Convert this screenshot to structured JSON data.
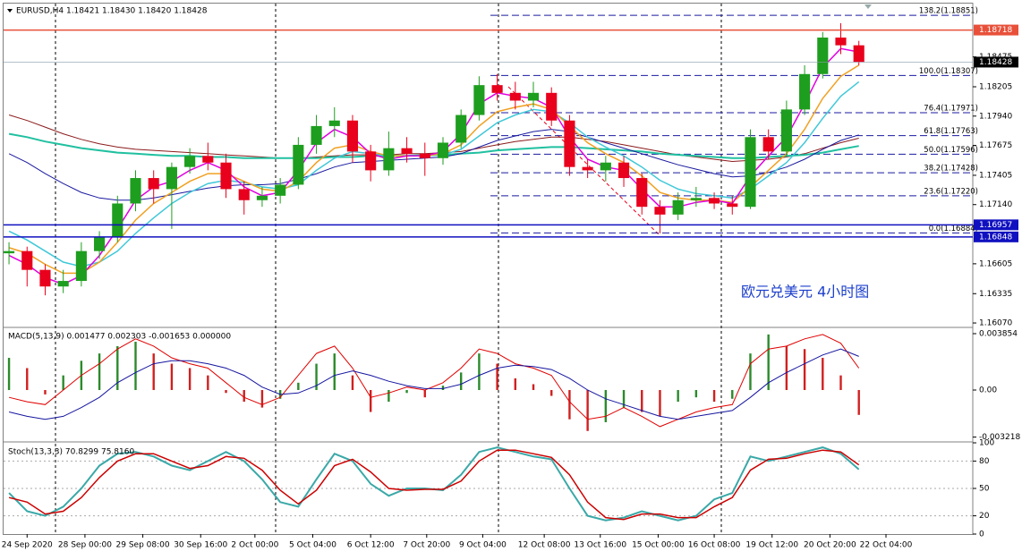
{
  "chart_data": [
    {
      "type": "candlestick",
      "title": "EURUSD,H4  1.18421 1.18430 1.18420 1.18428",
      "open": [
        1.167,
        1.1672,
        1.1655,
        1.164,
        1.1645,
        1.1672,
        1.1685,
        1.1715,
        1.1738,
        1.1728,
        1.1748,
        1.1758,
        1.1752,
        1.1728,
        1.1718,
        1.1722,
        1.1732,
        1.1768,
        1.1785,
        1.179,
        1.1762,
        1.1745,
        1.1765,
        1.176,
        1.1756,
        1.177,
        1.1795,
        1.1822,
        1.1815,
        1.1808,
        1.1815,
        1.179,
        1.1748,
        1.1745,
        1.1752,
        1.1738,
        1.1712,
        1.1705,
        1.1718,
        1.172,
        1.1715,
        1.1712,
        1.1775,
        1.1762,
        1.18,
        1.1832,
        1.1865,
        1.1858
      ],
      "high": [
        1.168,
        1.1676,
        1.166,
        1.1655,
        1.168,
        1.169,
        1.1722,
        1.1745,
        1.1745,
        1.1752,
        1.1765,
        1.177,
        1.176,
        1.1735,
        1.173,
        1.1738,
        1.1775,
        1.1795,
        1.1802,
        1.1795,
        1.1768,
        1.178,
        1.1775,
        1.177,
        1.1775,
        1.18,
        1.183,
        1.1832,
        1.1825,
        1.1825,
        1.182,
        1.1795,
        1.1755,
        1.1758,
        1.1758,
        1.1742,
        1.1718,
        1.1725,
        1.173,
        1.1725,
        1.1722,
        1.1782,
        1.1782,
        1.1808,
        1.184,
        1.187,
        1.1878,
        1.1862
      ],
      "low": [
        1.166,
        1.164,
        1.1632,
        1.1634,
        1.164,
        1.1665,
        1.168,
        1.1708,
        1.1715,
        1.1692,
        1.1742,
        1.1745,
        1.172,
        1.1705,
        1.1712,
        1.1715,
        1.1728,
        1.176,
        1.1775,
        1.1752,
        1.1735,
        1.174,
        1.1752,
        1.174,
        1.175,
        1.1765,
        1.179,
        1.1808,
        1.18,
        1.1802,
        1.1785,
        1.174,
        1.1738,
        1.1735,
        1.173,
        1.1705,
        1.1688,
        1.17,
        1.1712,
        1.171,
        1.1705,
        1.171,
        1.1755,
        1.1758,
        1.1795,
        1.1828,
        1.185,
        1.184
      ],
      "close": [
        1.1672,
        1.1655,
        1.164,
        1.1645,
        1.1672,
        1.1685,
        1.1715,
        1.1738,
        1.1728,
        1.1748,
        1.1758,
        1.1752,
        1.1728,
        1.1718,
        1.1722,
        1.1732,
        1.1768,
        1.1785,
        1.179,
        1.1762,
        1.1745,
        1.1765,
        1.176,
        1.1756,
        1.177,
        1.1795,
        1.1822,
        1.1815,
        1.1808,
        1.1815,
        1.179,
        1.1748,
        1.1745,
        1.1752,
        1.1738,
        1.1712,
        1.1705,
        1.1718,
        1.172,
        1.1715,
        1.1712,
        1.1775,
        1.1762,
        1.18,
        1.1832,
        1.1865,
        1.1858,
        1.18428
      ],
      "up_color": "#1e9e1e",
      "down_color": "#e8001c",
      "overlays": [
        {
          "color": "#8b1a1a",
          "width": 1,
          "values": [
            1.1795,
            1.179,
            1.1784,
            1.1778,
            1.1773,
            1.1769,
            1.1766,
            1.1764,
            1.1763,
            1.1762,
            1.1761,
            1.176,
            1.1759,
            1.1758,
            1.1757,
            1.1756,
            1.1756,
            1.1757,
            1.1758,
            1.1759,
            1.1759,
            1.1759,
            1.176,
            1.176,
            1.1761,
            1.1762,
            1.1765,
            1.1768,
            1.1771,
            1.1773,
            1.1775,
            1.1775,
            1.1773,
            1.1771,
            1.1768,
            1.1765,
            1.1762,
            1.1759,
            1.1757,
            1.1755,
            1.1753,
            1.1754,
            1.1755,
            1.1757,
            1.176,
            1.1765,
            1.177,
            1.1774
          ]
        },
        {
          "color": "#20c0a0",
          "width": 2,
          "values": [
            1.1778,
            1.1775,
            1.1771,
            1.1768,
            1.1765,
            1.1763,
            1.1761,
            1.176,
            1.1759,
            1.1758,
            1.1758,
            1.1757,
            1.1757,
            1.1756,
            1.1756,
            1.1756,
            1.1756,
            1.1756,
            1.1757,
            1.1757,
            1.1758,
            1.1758,
            1.1758,
            1.1759,
            1.1759,
            1.176,
            1.1761,
            1.1763,
            1.1764,
            1.1765,
            1.1766,
            1.1766,
            1.1765,
            1.1764,
            1.1763,
            1.1762,
            1.176,
            1.1759,
            1.1758,
            1.1757,
            1.1756,
            1.1756,
            1.1757,
            1.1758,
            1.1759,
            1.1761,
            1.1764,
            1.1767
          ]
        },
        {
          "color": "#1a1aa0",
          "width": 1,
          "values": [
            1.176,
            1.1752,
            1.1742,
            1.1733,
            1.1725,
            1.172,
            1.1718,
            1.1718,
            1.172,
            1.1723,
            1.1726,
            1.1729,
            1.1731,
            1.1732,
            1.1732,
            1.1733,
            1.1737,
            1.1742,
            1.1748,
            1.1752,
            1.1753,
            1.1754,
            1.1755,
            1.1756,
            1.1757,
            1.176,
            1.1766,
            1.1772,
            1.1776,
            1.178,
            1.1782,
            1.178,
            1.1775,
            1.177,
            1.1765,
            1.176,
            1.1755,
            1.175,
            1.1746,
            1.1742,
            1.1739,
            1.174,
            1.1743,
            1.1748,
            1.1755,
            1.1764,
            1.1772,
            1.1777
          ]
        },
        {
          "color": "#40c8d8",
          "width": 1.5,
          "values": [
            1.169,
            1.1682,
            1.1672,
            1.1662,
            1.1658,
            1.1662,
            1.1672,
            1.1688,
            1.1702,
            1.1715,
            1.1725,
            1.1733,
            1.1736,
            1.1734,
            1.173,
            1.1728,
            1.1732,
            1.1745,
            1.1756,
            1.1762,
            1.176,
            1.1758,
            1.1758,
            1.1758,
            1.1759,
            1.1764,
            1.1776,
            1.1788,
            1.1795,
            1.18,
            1.1798,
            1.1788,
            1.1775,
            1.1766,
            1.1758,
            1.1748,
            1.1736,
            1.1728,
            1.1724,
            1.1722,
            1.172,
            1.1728,
            1.174,
            1.1752,
            1.177,
            1.1792,
            1.1812,
            1.1825
          ]
        },
        {
          "color": "#f0a020",
          "width": 1.5,
          "values": [
            1.1675,
            1.167,
            1.166,
            1.1652,
            1.1652,
            1.1662,
            1.168,
            1.17,
            1.1715,
            1.1725,
            1.1735,
            1.1742,
            1.1742,
            1.1735,
            1.1728,
            1.1726,
            1.1735,
            1.1752,
            1.1765,
            1.1768,
            1.1762,
            1.1758,
            1.1758,
            1.1758,
            1.176,
            1.1768,
            1.1785,
            1.1798,
            1.1802,
            1.1805,
            1.18,
            1.1785,
            1.177,
            1.176,
            1.1752,
            1.174,
            1.1725,
            1.172,
            1.1718,
            1.1718,
            1.1716,
            1.173,
            1.1745,
            1.176,
            1.1782,
            1.181,
            1.183,
            1.184
          ]
        },
        {
          "color": "#e000e0",
          "width": 1.5,
          "values": [
            1.1668,
            1.166,
            1.1648,
            1.1642,
            1.165,
            1.1668,
            1.1692,
            1.1718,
            1.173,
            1.1735,
            1.1745,
            1.1752,
            1.1745,
            1.173,
            1.1722,
            1.1725,
            1.1745,
            1.177,
            1.1782,
            1.1775,
            1.176,
            1.1755,
            1.1758,
            1.1758,
            1.1762,
            1.1778,
            1.1805,
            1.1815,
            1.1812,
            1.181,
            1.1802,
            1.1775,
            1.1755,
            1.1748,
            1.1745,
            1.1728,
            1.1712,
            1.1712,
            1.1716,
            1.1718,
            1.1715,
            1.174,
            1.1758,
            1.1775,
            1.1805,
            1.1838,
            1.1855,
            1.1852
          ]
        }
      ],
      "ylim": [
        1.16038,
        1.18949
      ],
      "yticks": [
        1.18475,
        1.18205,
        {
          "value": 1.1794,
          "label": "1.17940"
        },
        1.17675,
        1.17405,
        {
          "value": 1.1714,
          "label": "1.17140"
        },
        1.16605,
        1.16335,
        {
          "value": 1.1607,
          "label": "1.16070"
        }
      ],
      "xlim": [
        -0.3,
        53.3
      ],
      "xticks": [
        {
          "value": 1.0,
          "label": "24 Sep 2020"
        },
        {
          "value": 4.2,
          "label": "28 Sep 00:00"
        },
        {
          "value": 7.4,
          "label": "29 Sep 08:00"
        },
        {
          "value": 10.6,
          "label": "30 Sep 16:00"
        },
        {
          "value": 13.6,
          "label": "2 Oct 00:00"
        },
        {
          "value": 16.8,
          "label": "5 Oct 04:00"
        },
        {
          "value": 20.0,
          "label": "6 Oct 12:00"
        },
        {
          "value": 23.1,
          "label": "7 Oct 20:00"
        },
        {
          "value": 26.2,
          "label": "9 Oct 04:00"
        },
        {
          "value": 29.6,
          "label": "12 Oct 08:00"
        },
        {
          "value": 32.7,
          "label": "13 Oct 16:00"
        },
        {
          "value": 35.9,
          "label": "15 Oct 00:00"
        },
        {
          "value": 39.0,
          "label": "16 Oct 08:00"
        },
        {
          "value": 42.2,
          "label": "19 Oct 12:00"
        },
        {
          "value": 45.4,
          "label": "20 Oct 20:00"
        },
        {
          "value": 48.5,
          "label": "22 Oct 04:00"
        }
      ],
      "price_lines": [
        {
          "value": 1.18718,
          "label": "1.18718",
          "color": "#e8503a"
        },
        {
          "value": 1.18428,
          "label": "1.18428",
          "color": "#000000"
        },
        {
          "value": 1.16957,
          "label": "1.16957",
          "color": "#1010c0"
        },
        {
          "value": 1.16848,
          "label": "1.16848",
          "color": "#1010c0"
        }
      ],
      "fibonacci": [
        {
          "value": 1.18851,
          "label": "138.2(1.18851)"
        },
        {
          "value": 1.18307,
          "label": "100.0(1.18307)"
        },
        {
          "value": 1.17971,
          "label": "76.4(1.17971)"
        },
        {
          "value": 1.17763,
          "label": "61.8(1.17763)"
        },
        {
          "value": 1.17596,
          "label": "50.0(1.17596)"
        },
        {
          "value": 1.17428,
          "label": "38.2(1.17428)"
        },
        {
          "value": 1.1722,
          "label": "23.6(1.17220)"
        },
        {
          "value": 1.16884,
          "label": "0.0(1.16884)"
        }
      ],
      "fib_color": "#1a1aa0",
      "annotation": "欧元兑美元 4小时图"
    },
    {
      "type": "macd",
      "title": "MACD(5,13,9) 0.001477 0.002303 -0.001653 0.000000",
      "histogram": [
        0.0022,
        0.0015,
        -0.0003,
        0.001,
        0.002,
        0.0025,
        0.003,
        0.0033,
        0.0025,
        0.0018,
        0.0015,
        0.001,
        -0.0002,
        -0.0008,
        -0.0012,
        -0.0006,
        0.0005,
        0.0018,
        0.0025,
        0.001,
        -0.0015,
        -0.0008,
        -0.0002,
        -0.0005,
        0.0003,
        0.0012,
        0.0025,
        0.0018,
        0.0008,
        0.0004,
        -0.0004,
        -0.002,
        -0.0028,
        -0.0022,
        -0.0012,
        -0.0015,
        -0.0018,
        -0.0008,
        -0.0005,
        -0.0008,
        -0.0006,
        0.0025,
        0.0038,
        0.003,
        0.0028,
        0.0022,
        0.001,
        -0.0017
      ],
      "hist_up_color": "#2b8a2b",
      "hist_down_color": "#d02020",
      "series": [
        {
          "color": "#e00000",
          "values": [
            -0.0005,
            -0.0008,
            -0.001,
            0.0,
            0.001,
            0.0018,
            0.0028,
            0.0035,
            0.003,
            0.0022,
            0.0018,
            0.0015,
            0.0005,
            -0.0005,
            -0.001,
            -0.0005,
            0.001,
            0.0025,
            0.003,
            0.0015,
            -0.0005,
            -0.0002,
            0.0002,
            0.0,
            0.0005,
            0.0015,
            0.0028,
            0.0025,
            0.0018,
            0.0015,
            0.001,
            -0.0008,
            -0.002,
            -0.0018,
            -0.0012,
            -0.0018,
            -0.0025,
            -0.002,
            -0.0015,
            -0.0012,
            -0.001,
            0.0018,
            0.0028,
            0.003,
            0.0035,
            0.0038,
            0.0032,
            0.0015
          ]
        },
        {
          "color": "#1515a0",
          "values": [
            -0.0015,
            -0.0018,
            -0.002,
            -0.0018,
            -0.0012,
            -0.0005,
            0.0005,
            0.0012,
            0.0018,
            0.002,
            0.002,
            0.0018,
            0.0015,
            0.001,
            0.0002,
            -0.0003,
            -0.0002,
            0.0003,
            0.001,
            0.0013,
            0.001,
            0.0006,
            0.0003,
            0.0001,
            0.0001,
            0.0004,
            0.001,
            0.0015,
            0.0017,
            0.0016,
            0.0014,
            0.0008,
            0.0,
            -0.0006,
            -0.001,
            -0.0014,
            -0.0018,
            -0.002,
            -0.0018,
            -0.0016,
            -0.0014,
            -0.0005,
            0.0005,
            0.0012,
            0.0018,
            0.0024,
            0.0028,
            0.0023
          ]
        }
      ],
      "ylim": [
        -0.003487,
        0.00422
      ],
      "yticks": [
        0.003854,
        {
          "value": 0,
          "label": "0.00"
        },
        -0.003218
      ]
    },
    {
      "type": "stochastic",
      "title": "Stoch(13,3,3) 70.8299 75.8160",
      "series": [
        {
          "color": "#3aa8a8",
          "width": 2,
          "values": [
            45,
            25,
            20,
            30,
            50,
            75,
            88,
            90,
            85,
            75,
            70,
            80,
            90,
            80,
            60,
            35,
            30,
            60,
            88,
            80,
            55,
            42,
            50,
            50,
            48,
            65,
            90,
            95,
            90,
            85,
            82,
            50,
            20,
            15,
            18,
            25,
            20,
            15,
            20,
            38,
            45,
            85,
            80,
            85,
            90,
            95,
            88,
            70.83
          ]
        },
        {
          "color": "#cc0000",
          "width": 1.5,
          "values": [
            40,
            35,
            22,
            25,
            40,
            62,
            80,
            88,
            88,
            80,
            72,
            75,
            85,
            83,
            70,
            48,
            33,
            48,
            75,
            82,
            68,
            50,
            48,
            49,
            49,
            58,
            80,
            92,
            92,
            88,
            84,
            65,
            35,
            18,
            16,
            22,
            22,
            18,
            18,
            30,
            40,
            70,
            82,
            83,
            88,
            92,
            90,
            75.82
          ]
        }
      ],
      "ylim": [
        0,
        100
      ],
      "yticks": [
        100,
        80,
        50,
        20,
        0
      ],
      "level_lines": true
    }
  ]
}
